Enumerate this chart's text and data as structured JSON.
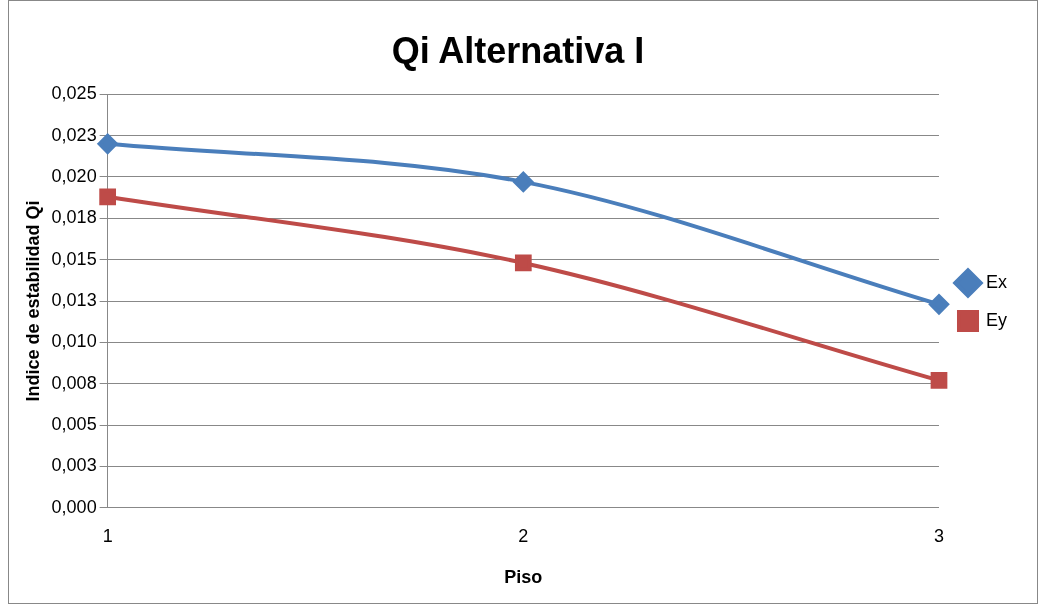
{
  "chart_data": {
    "type": "line",
    "title": "Qi Alternativa I",
    "xlabel": "Piso",
    "ylabel": "Indice de estabilidad Qi",
    "x": [
      1,
      2,
      3
    ],
    "xlim": [
      1,
      3
    ],
    "xticks": [
      1,
      2,
      3
    ],
    "ylim": [
      0,
      0.025
    ],
    "yticks": [
      {
        "value": 0,
        "label": "0,000"
      },
      {
        "value": 0.0025,
        "label": "0,003"
      },
      {
        "value": 0.005,
        "label": "0,005"
      },
      {
        "value": 0.0075,
        "label": "0,008"
      },
      {
        "value": 0.01,
        "label": "0,010"
      },
      {
        "value": 0.0125,
        "label": "0,013"
      },
      {
        "value": 0.015,
        "label": "0,015"
      },
      {
        "value": 0.0175,
        "label": "0,018"
      },
      {
        "value": 0.02,
        "label": "0,020"
      },
      {
        "value": 0.0225,
        "label": "0,023"
      },
      {
        "value": 0.025,
        "label": "0,025"
      }
    ],
    "series": [
      {
        "name": "Ex",
        "color": "#4a7ebb",
        "marker": "diamond",
        "values": [
          0.022,
          0.0197,
          0.0123
        ]
      },
      {
        "name": "Ey",
        "color": "#be4b48",
        "marker": "square",
        "values": [
          0.0188,
          0.0148,
          0.0077
        ]
      }
    ],
    "grid": "y",
    "legend": "right",
    "line_style": "solid"
  }
}
